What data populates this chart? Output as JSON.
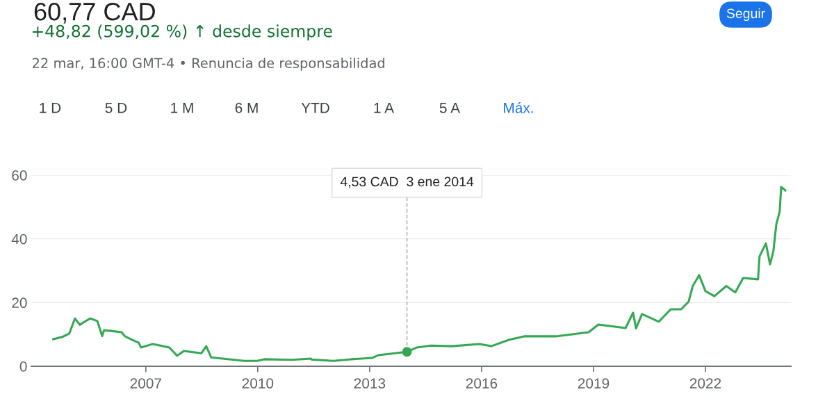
{
  "chart_data": {
    "type": "line",
    "title": "60,77 CAD",
    "subtitle": "+48,82 (599,02 %) ↑ desde siempre",
    "annotations": [
      {
        "text": "4,53 CAD  3 ene 2014",
        "x": 2014.0,
        "y": 4.53
      },
      "22 mar, 16:00 GMT-4 • Renuncia de responsabilidad",
      "1 D",
      "5 D",
      "1 M",
      "6 M",
      "YTD",
      "1 A",
      "5 A",
      "Máx.",
      "Seguir"
    ],
    "x": [
      2004.52,
      2004.76,
      2004.95,
      2005.1,
      2005.23,
      2005.36,
      2005.51,
      2005.7,
      2005.83,
      2005.88,
      2006.07,
      2006.35,
      2006.44,
      2006.63,
      2006.81,
      2006.87,
      2007.19,
      2007.63,
      2007.84,
      2008.02,
      2008.49,
      2008.62,
      2008.75,
      2009.24,
      2009.63,
      2009.98,
      2010.17,
      2010.91,
      2011.42,
      2011.45,
      2012.03,
      2012.5,
      2013.06,
      2013.24,
      2014.0,
      2014.27,
      2014.64,
      2015.2,
      2015.94,
      2016.26,
      2016.73,
      2017.14,
      2017.99,
      2018.87,
      2019.13,
      2019.86,
      2020.06,
      2020.14,
      2020.3,
      2020.75,
      2021.07,
      2021.35,
      2021.55,
      2021.66,
      2021.83,
      2022.0,
      2022.24,
      2022.56,
      2022.8,
      2023.01,
      2023.41,
      2023.45,
      2023.62,
      2023.73,
      2023.82,
      2023.9,
      2023.99,
      2024.03,
      2024.14
    ],
    "series": [
      {
        "color": "#34a853",
        "values": [
          8.5,
          9.2,
          10.3,
          15,
          13,
          14,
          15,
          14.2,
          9.5,
          11.3,
          11.1,
          10.7,
          9.4,
          8.3,
          7.4,
          5.9,
          7,
          5.9,
          3.3,
          4.8,
          4.1,
          6.3,
          2.8,
          2.2,
          1.7,
          1.7,
          2.2,
          2,
          2.4,
          2.1,
          1.7,
          2.2,
          2.6,
          3.5,
          4.53,
          5.9,
          6.5,
          6.3,
          7,
          6.3,
          8.3,
          9.4,
          9.4,
          10.7,
          13.1,
          12,
          16.8,
          11.9,
          16.4,
          14,
          17.9,
          17.9,
          20.3,
          25.2,
          28.6,
          23.6,
          22,
          25.2,
          23.2,
          27.7,
          27.3,
          34.5,
          38.6,
          32,
          36.1,
          44.6,
          48.6,
          56.3,
          55.2
        ]
      }
    ],
    "xlim": [
      2003.93,
      2024.29
    ],
    "ylim": [
      0,
      60
    ],
    "xticks": [
      2007,
      2010,
      2013,
      2016,
      2019,
      2022
    ],
    "yticks": [
      0,
      20,
      40,
      60
    ],
    "grid": "y"
  }
}
